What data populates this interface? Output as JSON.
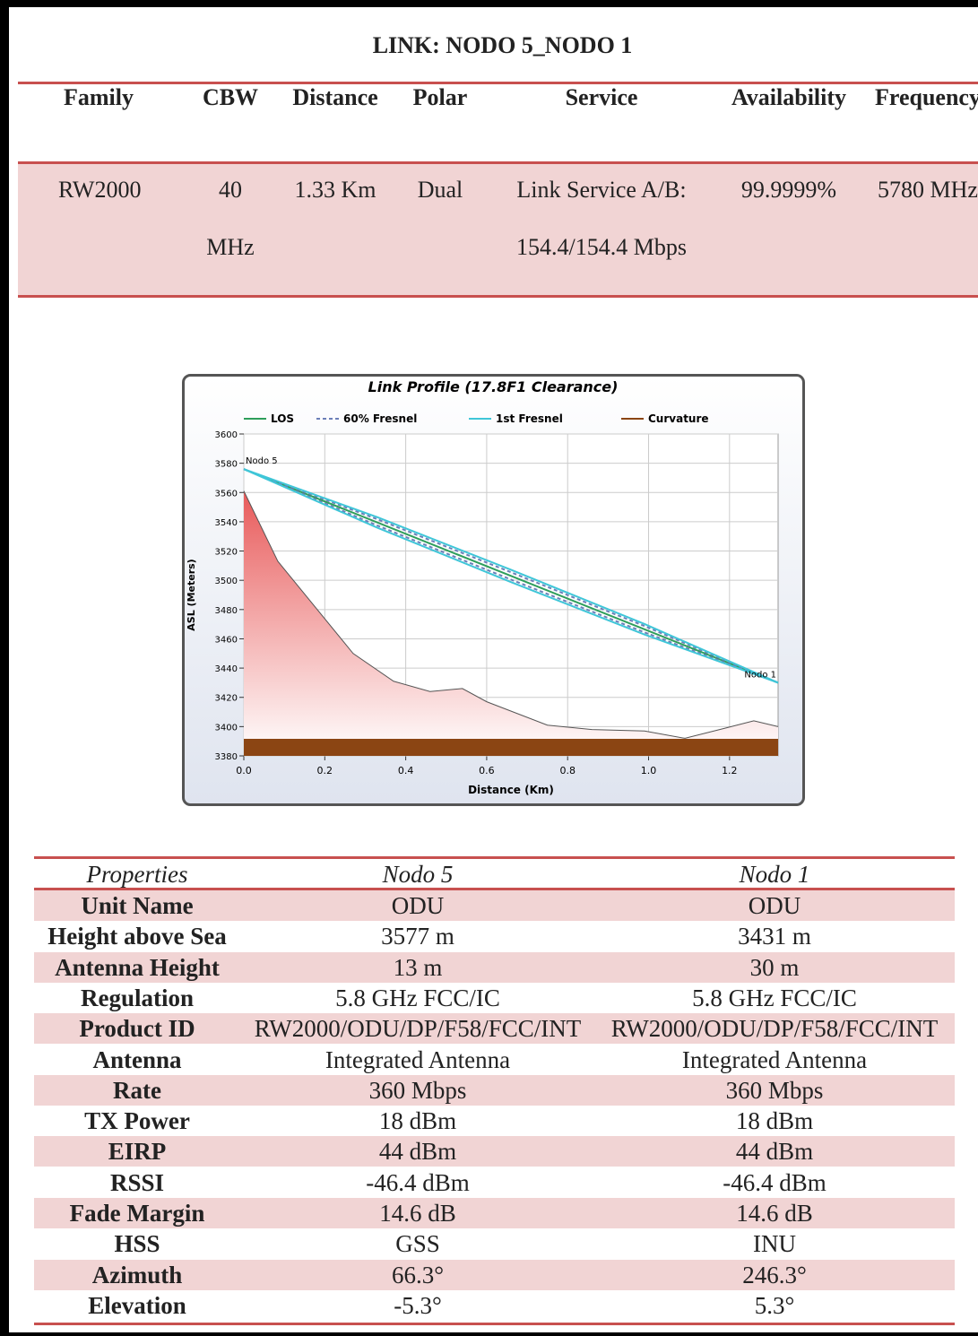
{
  "header": {
    "title": "LINK: NODO 5_NODO 1"
  },
  "link_table": {
    "columns": [
      "Family",
      "CBW",
      "Distance",
      "Polar",
      "Service",
      "Availability",
      "Frequency"
    ],
    "row": [
      "RW2000",
      "40 MHz",
      "1.33 Km",
      "Dual",
      "Link Service A/B: 154.4/154.4 Mbps",
      "99.9999%",
      "5780 MHz"
    ]
  },
  "chart": {
    "type": "line",
    "title": "Link Profile (17.8F1 Clearance)",
    "xlabel": "Distance (Km)",
    "ylabel": "ASL (Meters)",
    "xlim": [
      0,
      1.32
    ],
    "ylim": [
      3380,
      3600
    ],
    "xticks": [
      {
        "value": 0,
        "label": "0.0"
      },
      0.2,
      0.4,
      0.6,
      0.8,
      {
        "value": 1,
        "label": "1.0"
      },
      1.2
    ],
    "yticks": [
      3380,
      3400,
      3420,
      3440,
      3460,
      3480,
      3500,
      3520,
      3540,
      3560,
      3580,
      3600
    ],
    "grid": true,
    "series": [
      {
        "name": "LOS",
        "color": "#2e9e5b",
        "x": [
          0,
          1.32
        ],
        "values": [
          3576,
          3430
        ]
      },
      {
        "name": "60% Fresnel",
        "color": "#6b7fb8",
        "x": [
          0,
          0.33,
          0.66,
          0.99,
          1.32
        ],
        "upper": [
          3576,
          3541.7,
          3505.5,
          3468.7,
          3430
        ],
        "lower": [
          3576,
          3537.4,
          3500.5,
          3464.4,
          3430
        ]
      },
      {
        "name": "1st Fresnel",
        "color": "#3fc6d8",
        "x": [
          0,
          0.33,
          0.66,
          0.99,
          1.32
        ],
        "upper": [
          3576,
          3543.1,
          3507.2,
          3470.1,
          3430
        ],
        "lower": [
          3576,
          3535.9,
          3498.8,
          3462.9,
          3430
        ]
      },
      {
        "name": "Curvature",
        "color": "#8b4513",
        "x": [
          0,
          1.32
        ],
        "values": [
          3391,
          3391
        ]
      }
    ],
    "terrain": {
      "color": "#e05555",
      "x": [
        0,
        0.084,
        0.27,
        0.37,
        0.46,
        0.54,
        0.6,
        0.75,
        0.86,
        0.99,
        1.09,
        1.19,
        1.26,
        1.32
      ],
      "values": [
        3561,
        3513,
        3450,
        3431,
        3424,
        3426,
        3417,
        3401,
        3398,
        3397,
        3392,
        3399,
        3404,
        3400
      ]
    },
    "annotations": [
      {
        "text": "Nodo 5",
        "x": 0,
        "y": 3576
      },
      {
        "text": "Nodo 1",
        "x": 1.32,
        "y": 3430
      }
    ]
  },
  "properties_table": {
    "columns": [
      "Properties",
      "Nodo 5",
      "Nodo 1"
    ],
    "rows": [
      [
        "Unit Name",
        "ODU",
        "ODU"
      ],
      [
        "Height above Sea",
        "3577 m",
        "3431 m"
      ],
      [
        "Antenna Height",
        "13 m",
        "30 m"
      ],
      [
        "Regulation",
        "5.8 GHz FCC/IC",
        "5.8 GHz FCC/IC"
      ],
      [
        "Product ID",
        "RW2000/ODU/DP/F58/FCC/INT",
        "RW2000/ODU/DP/F58/FCC/INT"
      ],
      [
        "Antenna",
        "Integrated Antenna",
        "Integrated Antenna"
      ],
      [
        "Rate",
        "360 Mbps",
        "360 Mbps"
      ],
      [
        "TX Power",
        "18 dBm",
        "18 dBm"
      ],
      [
        "EIRP",
        "44 dBm",
        "44 dBm"
      ],
      [
        "RSSI",
        "-46.4 dBm",
        "-46.4 dBm"
      ],
      [
        "Fade Margin",
        "14.6 dB",
        "14.6 dB"
      ],
      [
        "HSS",
        "GSS",
        "INU"
      ],
      [
        "Azimuth",
        "66.3°",
        "246.3°"
      ],
      [
        "Elevation",
        "-5.3°",
        "5.3°"
      ]
    ]
  }
}
